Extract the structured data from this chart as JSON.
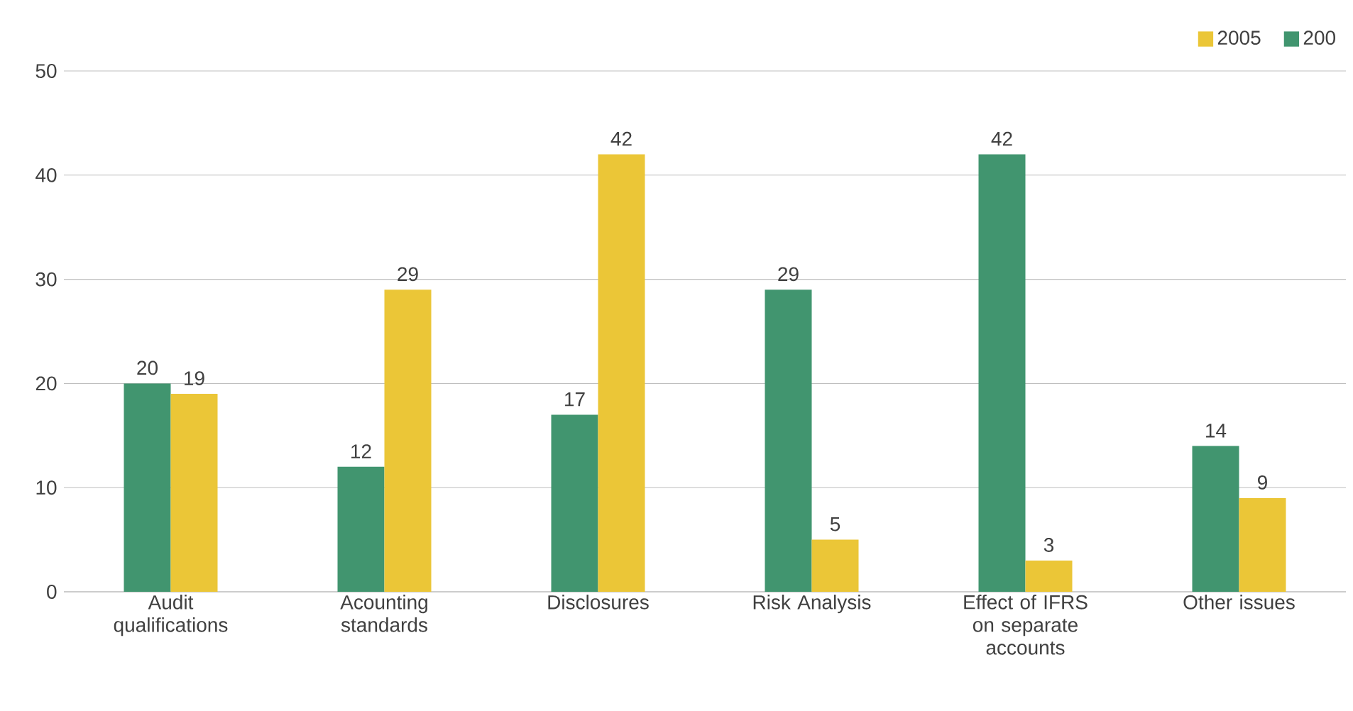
{
  "chart_data": {
    "type": "bar",
    "categories": [
      "Audit qualifications",
      "Acounting standards",
      "Disclosures",
      "Risk Analysis",
      "Effect of IFRS on separate accounts",
      "Other issues"
    ],
    "series": [
      {
        "name": "200",
        "color": "#41956f",
        "values": [
          20,
          12,
          17,
          29,
          42,
          14
        ]
      },
      {
        "name": "2005",
        "color": "#ebc637",
        "values": [
          19,
          29,
          42,
          5,
          3,
          9
        ]
      }
    ],
    "ylim": [
      0,
      50
    ],
    "yticks": [
      0,
      10,
      20,
      30,
      40,
      50
    ],
    "grid": "y",
    "legend": "top right",
    "data_labels": true
  }
}
